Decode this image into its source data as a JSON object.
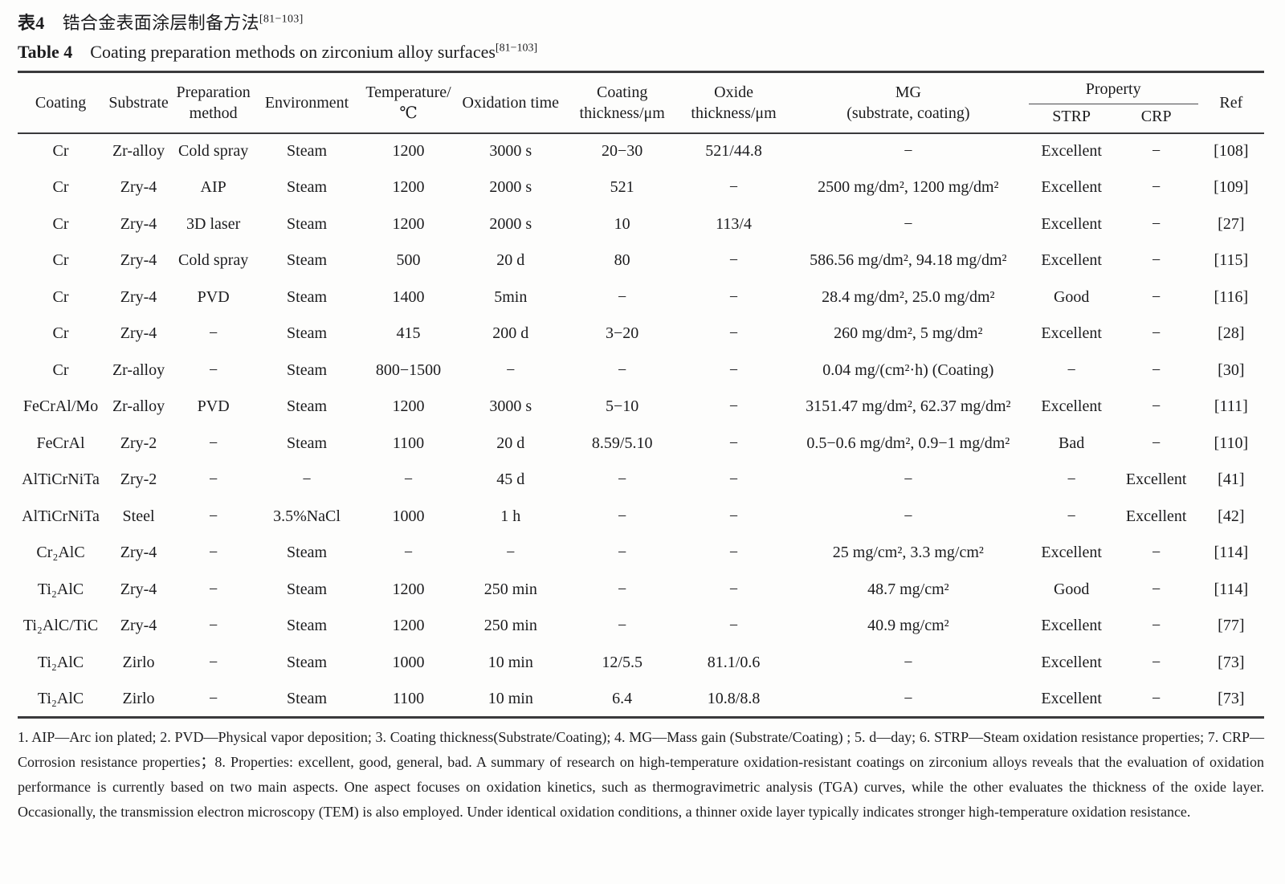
{
  "title": {
    "zh_label": "表4",
    "zh_text": "锆合金表面涂层制备方法",
    "zh_ref": "[81−103]",
    "en_label": "Table 4",
    "en_text": "Coating preparation methods on zirconium alloy surfaces",
    "en_ref": "[81−103]"
  },
  "table": {
    "headers": {
      "coating": "Coating",
      "substrate": "Substrate",
      "preparation_method": "Preparation\nmethod",
      "environment": "Environment",
      "temperature": "Temperature/\n℃",
      "oxidation_time": "Oxidation time",
      "coating_thickness": "Coating\nthickness/μm",
      "oxide_thickness": "Oxide\nthickness/μm",
      "mg": "MG\n(substrate, coating)",
      "property_group": "Property",
      "strp": "STRP",
      "crp": "CRP",
      "ref": "Ref"
    },
    "rows": [
      [
        "Cr",
        "Zr-alloy",
        "Cold spray",
        "Steam",
        "1200",
        "3000 s",
        "20−30",
        "521/44.8",
        "−",
        "Excellent",
        "−",
        "[108]"
      ],
      [
        "Cr",
        "Zry-4",
        "AIP",
        "Steam",
        "1200",
        "2000 s",
        "521",
        "−",
        "2500 mg/dm², 1200 mg/dm²",
        "Excellent",
        "−",
        "[109]"
      ],
      [
        "Cr",
        "Zry-4",
        "3D laser",
        "Steam",
        "1200",
        "2000 s",
        "10",
        "113/4",
        "−",
        "Excellent",
        "−",
        "[27]"
      ],
      [
        "Cr",
        "Zry-4",
        "Cold spray",
        "Steam",
        "500",
        "20 d",
        "80",
        "−",
        "586.56 mg/dm², 94.18 mg/dm²",
        "Excellent",
        "−",
        "[115]"
      ],
      [
        "Cr",
        "Zry-4",
        "PVD",
        "Steam",
        "1400",
        "5min",
        "−",
        "−",
        "28.4 mg/dm², 25.0 mg/dm²",
        "Good",
        "−",
        "[116]"
      ],
      [
        "Cr",
        "Zry-4",
        "−",
        "Steam",
        "415",
        "200 d",
        "3−20",
        "−",
        "260 mg/dm², 5 mg/dm²",
        "Excellent",
        "−",
        "[28]"
      ],
      [
        "Cr",
        "Zr-alloy",
        "−",
        "Steam",
        "800−1500",
        "−",
        "−",
        "−",
        "0.04 mg/(cm²·h) (Coating)",
        "−",
        "−",
        "[30]"
      ],
      [
        "FeCrAl/Mo",
        "Zr-alloy",
        "PVD",
        "Steam",
        "1200",
        "3000 s",
        "5−10",
        "−",
        "3151.47 mg/dm², 62.37 mg/dm²",
        "Excellent",
        "−",
        "[111]"
      ],
      [
        "FeCrAl",
        "Zry-2",
        "−",
        "Steam",
        "1100",
        "20 d",
        "8.59/5.10",
        "−",
        "0.5−0.6 mg/dm², 0.9−1 mg/dm²",
        "Bad",
        "−",
        "[110]"
      ],
      [
        "AlTiCrNiTa",
        "Zry-2",
        "−",
        "−",
        "−",
        "45 d",
        "−",
        "−",
        "−",
        "−",
        "Excellent",
        "[41]"
      ],
      [
        "AlTiCrNiTa",
        "Steel",
        "−",
        "3.5%NaCl",
        "1000",
        "1 h",
        "−",
        "−",
        "−",
        "−",
        "Excellent",
        "[42]"
      ],
      [
        "Cr₂AlC",
        "Zry-4",
        "−",
        "Steam",
        "−",
        "−",
        "−",
        "−",
        "25 mg/cm², 3.3 mg/cm²",
        "Excellent",
        "−",
        "[114]"
      ],
      [
        "Ti₂AlC",
        "Zry-4",
        "−",
        "Steam",
        "1200",
        "250 min",
        "−",
        "−",
        "48.7 mg/cm²",
        "Good",
        "−",
        "[114]"
      ],
      [
        "Ti₂AlC/TiC",
        "Zry-4",
        "−",
        "Steam",
        "1200",
        "250 min",
        "−",
        "−",
        "40.9 mg/cm²",
        "Excellent",
        "−",
        "[77]"
      ],
      [
        "Ti₂AlC",
        "Zirlo",
        "−",
        "Steam",
        "1000",
        "10 min",
        "12/5.5",
        "81.1/0.6",
        "−",
        "Excellent",
        "−",
        "[73]"
      ],
      [
        "Ti₂AlC",
        "Zirlo",
        "−",
        "Steam",
        "1100",
        "10 min",
        "6.4",
        "10.8/8.8",
        "−",
        "Excellent",
        "−",
        "[73]"
      ]
    ]
  },
  "footnote": {
    "text": "1. AIP—Arc ion plated; 2. PVD—Physical vapor deposition; 3. Coating thickness(Substrate/Coating); 4. MG—Mass gain (Substrate/Coating) ; 5. d—day; 6. STRP—Steam oxidation resistance properties; 7. CRP—Corrosion resistance properties；8. Properties: excellent, good, general, bad. A summary of research on high-temperature oxidation-resistant coatings on zirconium alloys reveals that the evaluation of oxidation performance is currently based on two main aspects. One aspect focuses on oxidation kinetics, such as thermogravimetric analysis (TGA) curves, while the other evaluates the thickness of the oxide layer. Occasionally, the transmission electron microscopy (TEM) is also employed. Under identical oxidation conditions, a thinner oxide layer typically indicates stronger high-temperature oxidation resistance."
  }
}
